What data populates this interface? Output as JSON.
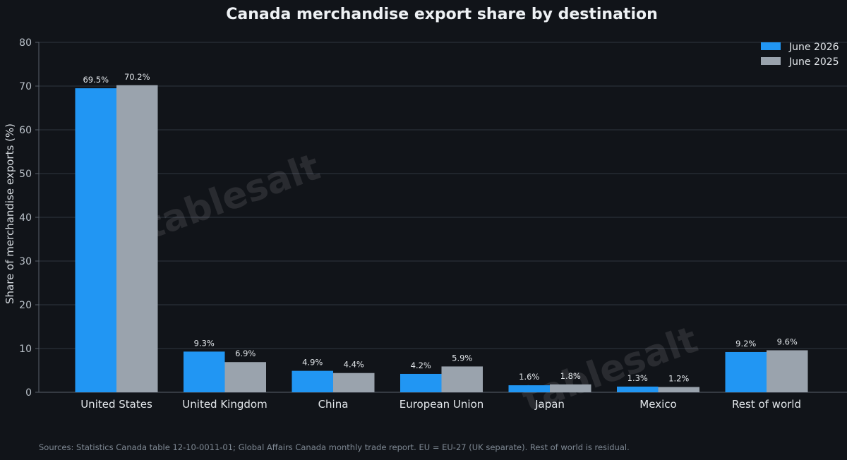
{
  "chart_data": {
    "type": "bar",
    "title": "Canada merchandise export share by destination",
    "ylabel": "Share of merchandise exports (%)",
    "xlabel": "",
    "ylim": [
      0,
      80
    ],
    "yticks": [
      0,
      10,
      20,
      30,
      40,
      50,
      60,
      70,
      80
    ],
    "grid": true,
    "legend_position": "top-right",
    "categories": [
      "United States",
      "United Kingdom",
      "China",
      "European Union",
      "Japan",
      "Mexico",
      "Rest of world"
    ],
    "series": [
      {
        "name": "June 2026",
        "color": "#2196f3",
        "values": [
          69.5,
          9.3,
          4.9,
          4.2,
          1.6,
          1.3,
          9.2
        ],
        "labels": [
          "69.5%",
          "9.3%",
          "4.9%",
          "4.2%",
          "1.6%",
          "1.3%",
          "9.2%"
        ]
      },
      {
        "name": "June 2025",
        "color": "#9aa3ad",
        "values": [
          70.2,
          6.9,
          4.4,
          5.9,
          1.8,
          1.2,
          9.6
        ],
        "labels": [
          "70.2%",
          "6.9%",
          "4.4%",
          "5.9%",
          "1.8%",
          "1.2%",
          "9.6%"
        ]
      }
    ],
    "source_note": "Sources: Statistics Canada table 12-10-0011-01; Global Affairs Canada monthly trade report. EU = EU-27 (UK separate). Rest of world is residual.",
    "watermark": "tablesalt"
  }
}
